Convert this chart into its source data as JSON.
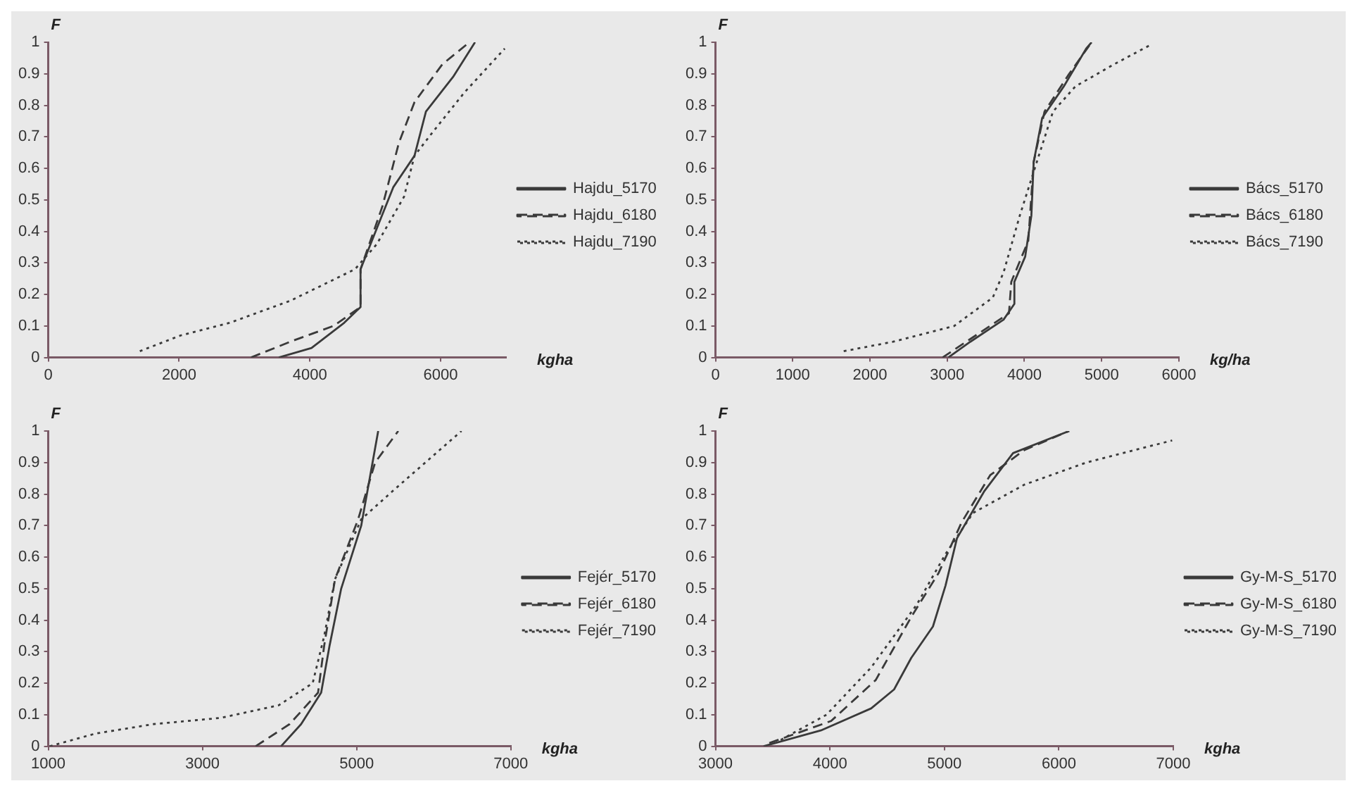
{
  "chart_data": [
    {
      "type": "line",
      "xlabel": "kgha",
      "ylabel": "F",
      "xlim": [
        0,
        7000
      ],
      "xticks": [
        0,
        2000,
        4000,
        6000
      ],
      "ylim": [
        0,
        1
      ],
      "yticks": [
        0,
        0.1,
        0.2,
        0.3,
        0.4,
        0.5,
        0.6,
        0.7,
        0.8,
        0.9,
        1
      ],
      "grid": false,
      "legend": "right",
      "marker": "none",
      "series": [
        {
          "name": "Hajdu_5170",
          "color": "#3a3a3a",
          "line_style": "solid",
          "x": [
            3525,
            4025,
            4525,
            4775,
            4775,
            5025,
            5275,
            5600,
            5775,
            6190,
            6525
          ],
          "values": [
            0,
            0.03,
            0.11,
            0.16,
            0.28,
            0.41,
            0.54,
            0.64,
            0.78,
            0.89,
            1
          ]
        },
        {
          "name": "Hajdu_6180",
          "color": "#3a3a3a",
          "line_style": "dashed",
          "x": [
            3100,
            3700,
            4360,
            4775,
            4775,
            5110,
            5360,
            5600,
            6025,
            6440
          ],
          "values": [
            0,
            0.05,
            0.1,
            0.16,
            0.28,
            0.48,
            0.68,
            0.81,
            0.93,
            1
          ]
        },
        {
          "name": "Hajdu_7190",
          "color": "#3a3a3a",
          "line_style": "dotted",
          "x": [
            1400,
            2025,
            2775,
            3700,
            4690,
            5025,
            5440,
            5600,
            5860,
            6360,
            6980
          ],
          "values": [
            0.02,
            0.07,
            0.11,
            0.18,
            0.28,
            0.36,
            0.51,
            0.64,
            0.71,
            0.84,
            0.98
          ]
        }
      ]
    },
    {
      "type": "line",
      "xlabel": "kg/ha",
      "ylabel": "F",
      "xlim": [
        0,
        6000
      ],
      "xticks": [
        0,
        1000,
        2000,
        3000,
        4000,
        5000,
        6000
      ],
      "ylim": [
        0,
        1
      ],
      "yticks": [
        0,
        0.1,
        0.2,
        0.3,
        0.4,
        0.5,
        0.6,
        0.7,
        0.8,
        0.9,
        1
      ],
      "grid": false,
      "legend": "right",
      "marker": "none",
      "series": [
        {
          "name": "Bács_5170",
          "color": "#3a3a3a",
          "line_style": "solid",
          "x": [
            3014,
            3300,
            3730,
            3870,
            3870,
            4010,
            4090,
            4120,
            4230,
            4510,
            4800,
            4870
          ],
          "values": [
            0,
            0.05,
            0.12,
            0.17,
            0.24,
            0.32,
            0.45,
            0.62,
            0.76,
            0.86,
            0.98,
            1
          ]
        },
        {
          "name": "Bács_6180",
          "color": "#3a3a3a",
          "line_style": "dashed",
          "x": [
            2940,
            3370,
            3800,
            3830,
            4050,
            4120,
            4260,
            4580,
            4870
          ],
          "values": [
            0,
            0.07,
            0.14,
            0.24,
            0.37,
            0.62,
            0.78,
            0.9,
            1
          ]
        },
        {
          "name": "Bács_7190",
          "color": "#3a3a3a",
          "line_style": "dotted",
          "x": [
            1660,
            2300,
            3090,
            3590,
            3730,
            3940,
            4160,
            4370,
            4660,
            5160,
            5620
          ],
          "values": [
            0.02,
            0.05,
            0.1,
            0.19,
            0.27,
            0.45,
            0.62,
            0.78,
            0.86,
            0.93,
            0.99
          ]
        }
      ]
    },
    {
      "type": "line",
      "xlabel": "kgha",
      "ylabel": "F",
      "xlim": [
        1000,
        7000
      ],
      "xticks": [
        1000,
        3000,
        5000,
        7000
      ],
      "ylim": [
        0,
        1
      ],
      "yticks": [
        0,
        0.1,
        0.2,
        0.3,
        0.4,
        0.5,
        0.6,
        0.7,
        0.8,
        0.9,
        1
      ],
      "grid": false,
      "legend": "right",
      "marker": "none",
      "series": [
        {
          "name": "Fejér_5170",
          "color": "#3a3a3a",
          "line_style": "solid",
          "x": [
            4020,
            4280,
            4540,
            4650,
            4800,
            5060,
            5170,
            5280
          ],
          "values": [
            0,
            0.07,
            0.17,
            0.32,
            0.5,
            0.7,
            0.85,
            1
          ]
        },
        {
          "name": "Fejér_6180",
          "color": "#3a3a3a",
          "line_style": "dashed",
          "x": [
            3690,
            4130,
            4500,
            4580,
            4720,
            5020,
            5240,
            5540
          ],
          "values": [
            0,
            0.07,
            0.17,
            0.32,
            0.53,
            0.72,
            0.9,
            1
          ]
        },
        {
          "name": "Fejér_7190",
          "color": "#3a3a3a",
          "line_style": "dotted",
          "x": [
            1020,
            1610,
            2360,
            3240,
            3990,
            4430,
            4580,
            4720,
            5060,
            5470,
            6360
          ],
          "values": [
            0,
            0.04,
            0.07,
            0.09,
            0.13,
            0.2,
            0.35,
            0.53,
            0.72,
            0.81,
            1
          ]
        }
      ]
    },
    {
      "type": "line",
      "xlabel": "kgha",
      "ylabel": "F",
      "xlim": [
        3000,
        7000
      ],
      "xticks": [
        3000,
        4000,
        5000,
        6000,
        7000
      ],
      "ylim": [
        0,
        1
      ],
      "yticks": [
        0,
        0.1,
        0.2,
        0.3,
        0.4,
        0.5,
        0.6,
        0.7,
        0.8,
        0.9,
        1
      ],
      "grid": false,
      "legend": "right",
      "marker": "none",
      "series": [
        {
          "name": "Gy-M-S_5170",
          "color": "#3a3a3a",
          "line_style": "solid",
          "x": [
            3420,
            3920,
            4360,
            4560,
            4710,
            4900,
            5010,
            5110,
            5350,
            5600,
            6090
          ],
          "values": [
            0,
            0.05,
            0.12,
            0.18,
            0.28,
            0.38,
            0.51,
            0.66,
            0.81,
            0.93,
            1
          ]
        },
        {
          "name": "Gy-M-S_6180",
          "color": "#3a3a3a",
          "line_style": "dashed",
          "x": [
            3470,
            4010,
            4400,
            4710,
            4950,
            5150,
            5400,
            5700,
            6090
          ],
          "values": [
            0.01,
            0.08,
            0.21,
            0.41,
            0.55,
            0.71,
            0.86,
            0.94,
            1
          ]
        },
        {
          "name": "Gy-M-S_7190",
          "color": "#3a3a3a",
          "line_style": "dotted",
          "x": [
            3570,
            3970,
            4360,
            4760,
            5010,
            5250,
            5700,
            6240,
            6990
          ],
          "values": [
            0.02,
            0.1,
            0.25,
            0.45,
            0.61,
            0.74,
            0.83,
            0.9,
            0.97
          ]
        }
      ]
    }
  ]
}
